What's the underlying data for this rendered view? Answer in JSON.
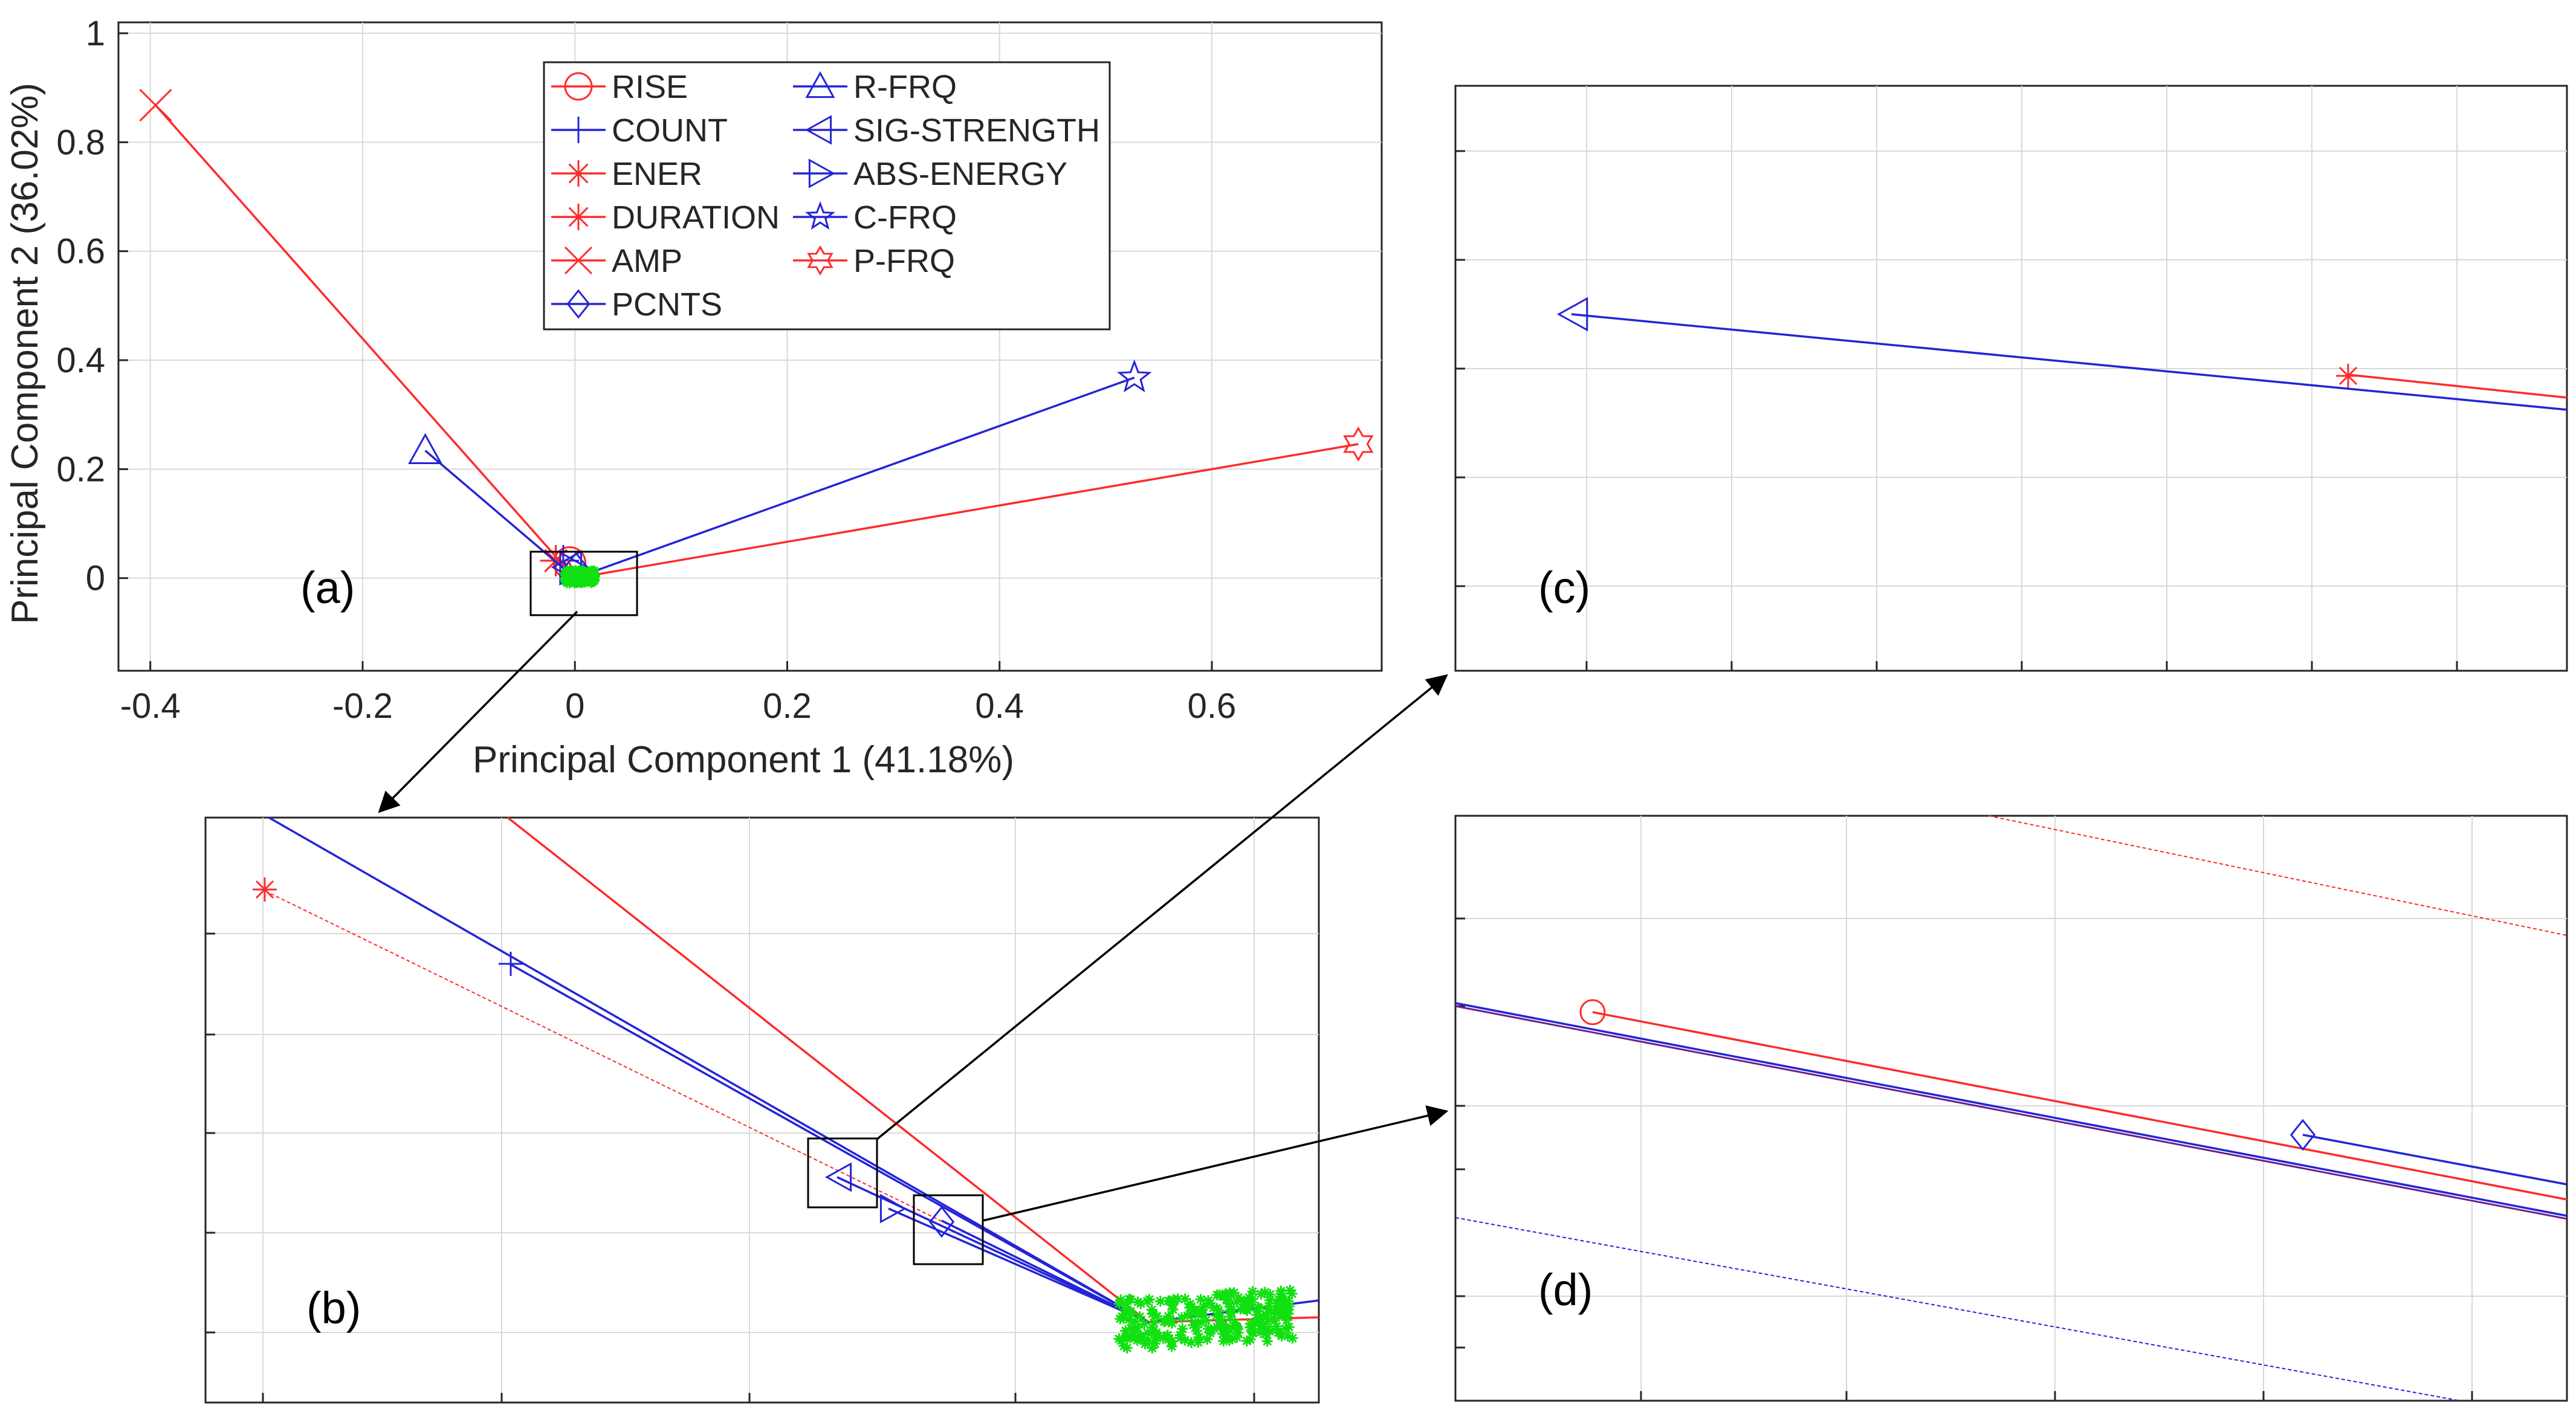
{
  "colors": {
    "red": "#ff2b2b",
    "blue": "#2424d8",
    "green": "#11e011",
    "grid": "#d9d9d9",
    "box": "#262626"
  },
  "chart_data": [
    {
      "panel": "(a)",
      "type": "scatter",
      "subtype": "biplot",
      "xlabel": "Principal Component 1 (41.18%)",
      "ylabel": "Principal Component 2 (36.02%)",
      "xlim": [
        -0.43,
        0.76
      ],
      "ylim": [
        -0.17,
        1.02
      ],
      "xticks": [
        "-0.4",
        "-0.2",
        "0",
        "0.2",
        "0.4",
        "0.6"
      ],
      "yticks": [
        "0",
        "0.2",
        "0.4",
        "0.6",
        "0.8",
        "1"
      ],
      "grid": true,
      "legend_position": "top-center",
      "series": [
        {
          "name": "RISE",
          "x": -0.005,
          "y": 0.028,
          "color": "red",
          "marker": "circle"
        },
        {
          "name": "COUNT",
          "x": -0.011,
          "y": 0.032,
          "color": "blue",
          "marker": "plus"
        },
        {
          "name": "ENER",
          "x": -0.018,
          "y": 0.032,
          "color": "red",
          "marker": "asterisk"
        },
        {
          "name": "DURATION",
          "x": -0.018,
          "y": 0.032,
          "color": "red",
          "marker": "asterisk"
        },
        {
          "name": "AMP",
          "x": -0.395,
          "y": 0.868,
          "color": "red",
          "marker": "x"
        },
        {
          "name": "PCNTS",
          "x": 0.001,
          "y": 0.017,
          "color": "blue",
          "marker": "diamond"
        },
        {
          "name": "R-FRQ",
          "x": -0.141,
          "y": 0.234,
          "color": "blue",
          "marker": "triangle-up"
        },
        {
          "name": "SIG-STRENGTH",
          "x": -0.006,
          "y": 0.02,
          "color": "blue",
          "marker": "triangle-left"
        },
        {
          "name": "ABS-ENERGY",
          "x": -0.002,
          "y": 0.018,
          "color": "blue",
          "marker": "triangle-right"
        },
        {
          "name": "C-FRQ",
          "x": 0.527,
          "y": 0.368,
          "color": "blue",
          "marker": "star"
        },
        {
          "name": "P-FRQ",
          "x": 0.738,
          "y": 0.246,
          "color": "red",
          "marker": "hexagram"
        }
      ],
      "scores": {
        "name": "observations",
        "color": "green",
        "x_range": [
          -0.01,
          0.02
        ],
        "y_range": [
          -0.01,
          0.015
        ]
      }
    },
    {
      "panel": "(b)",
      "type": "line",
      "description_none": true
    },
    {
      "panel": "(c)",
      "type": "line"
    },
    {
      "panel": "(d)",
      "type": "line"
    }
  ]
}
